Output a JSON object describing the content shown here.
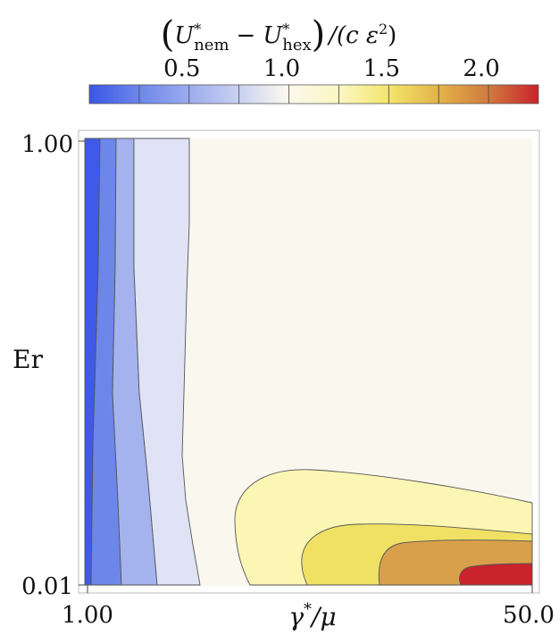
{
  "chart_data": {
    "type": "heatmap",
    "title_parts": {
      "open": "(",
      "u1": "U",
      "u1_sup": "*",
      "u1_sub": "nem",
      "minus": "−",
      "u2": "U",
      "u2_sup": "*",
      "u2_sub": "hex",
      "close": ")",
      "divisor": "/(c ε",
      "divisor_sup": "2",
      "divisor_close": ")"
    },
    "xlabel_parts": {
      "gamma": "γ",
      "sup": "*",
      "rest": "/μ"
    },
    "ylabel": "Er",
    "x_ticks": [
      "1.00",
      "50.0"
    ],
    "y_ticks": [
      "1.00",
      "0.01"
    ],
    "xlim": [
      1.0,
      50.0
    ],
    "ylim": [
      0.01,
      1.0
    ],
    "x_scale": "log",
    "y_scale": "log",
    "colorbar": {
      "placement": "top",
      "range": [
        0.0,
        2.25
      ],
      "ticks": [
        "0.5",
        "1.0",
        "1.5",
        "2.0"
      ],
      "tick_values": [
        0.5,
        1.0,
        1.5,
        2.0
      ],
      "color_low": "#3a56e6",
      "color_mid": "#fbf8ee",
      "color_high": "#c9232c"
    },
    "contour_levels": [
      0.25,
      0.5,
      0.75,
      1.25,
      1.5,
      1.75,
      2.0
    ],
    "regions": [
      {
        "range": [
          0.0,
          0.25
        ],
        "color": "#3f5ae6"
      },
      {
        "range": [
          0.25,
          0.5
        ],
        "color": "#6d86ea"
      },
      {
        "range": [
          0.5,
          0.75
        ],
        "color": "#a4b3ee"
      },
      {
        "range": [
          0.75,
          1.0
        ],
        "color": "#dfe3f5"
      },
      {
        "range": [
          1.0,
          1.25
        ],
        "color": "#faf7ee"
      },
      {
        "range": [
          1.25,
          1.5
        ],
        "color": "#fbf6b4"
      },
      {
        "range": [
          1.5,
          1.75
        ],
        "color": "#f0e164"
      },
      {
        "range": [
          1.75,
          2.0
        ],
        "color": "#d8a04a"
      },
      {
        "range": [
          2.0,
          2.25
        ],
        "color": "#c9232c"
      }
    ]
  }
}
